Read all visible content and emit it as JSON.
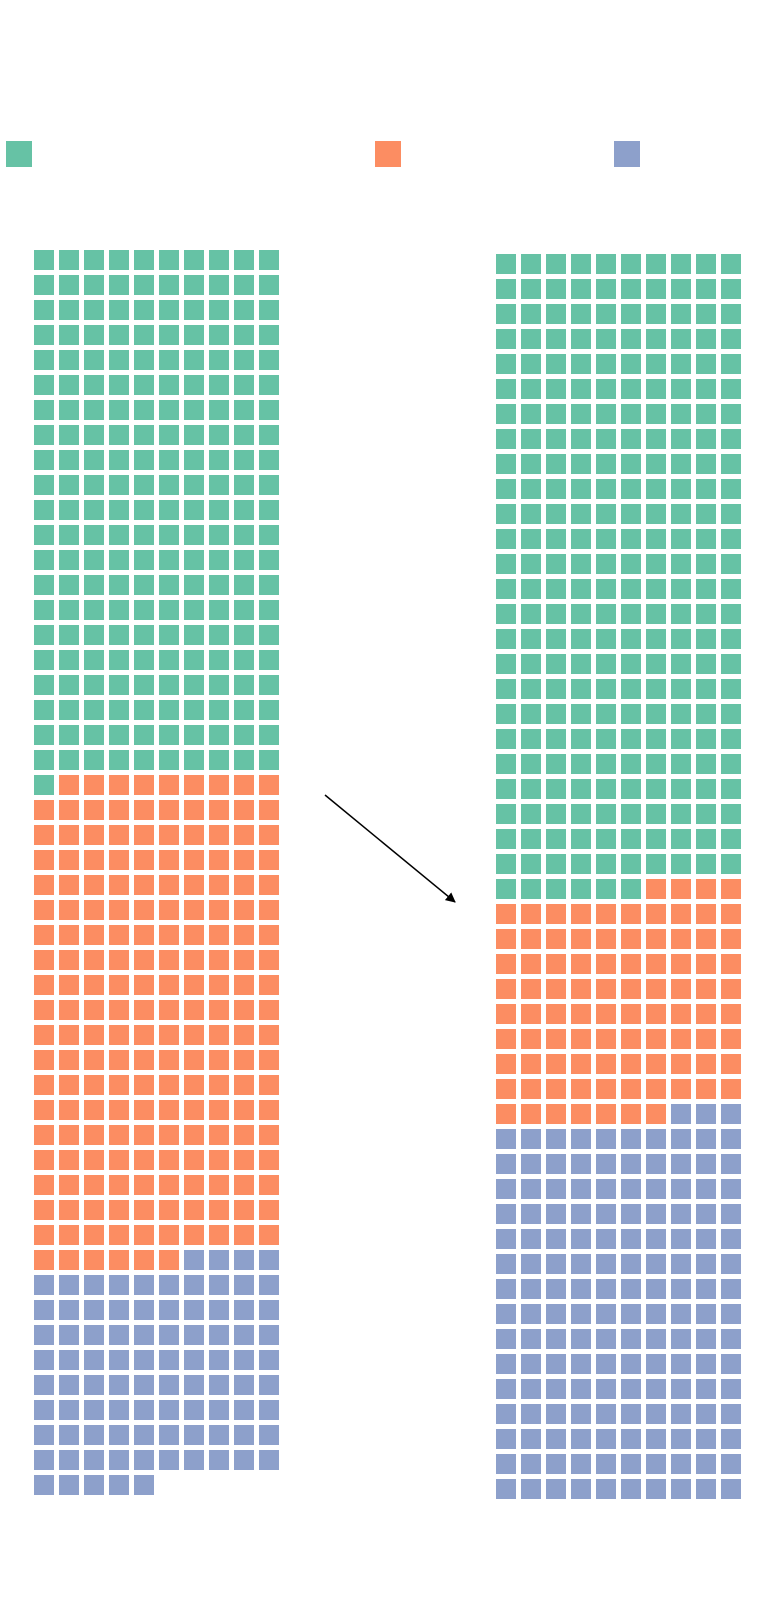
{
  "chart_data": [
    {
      "type": "waffle",
      "panel": "left",
      "columns": 10,
      "series": [
        {
          "values": [
            211
          ]
        },
        {
          "values": [
            195
          ]
        },
        {
          "values": [
            89
          ]
        }
      ],
      "total": 495
    },
    {
      "type": "waffle",
      "panel": "right",
      "columns": 10,
      "series": [
        {
          "values": [
            256
          ]
        },
        {
          "values": [
            91
          ]
        },
        {
          "values": [
            153
          ]
        }
      ],
      "total": 500
    }
  ],
  "legend": {
    "items": [
      {
        "label": "",
        "color": "#66c2a5"
      },
      {
        "label": "",
        "color": "#fc8d62"
      },
      {
        "label": "",
        "color": "#8da0cb"
      }
    ]
  },
  "annotation": {
    "type": "arrow",
    "direction": "left-to-right"
  }
}
